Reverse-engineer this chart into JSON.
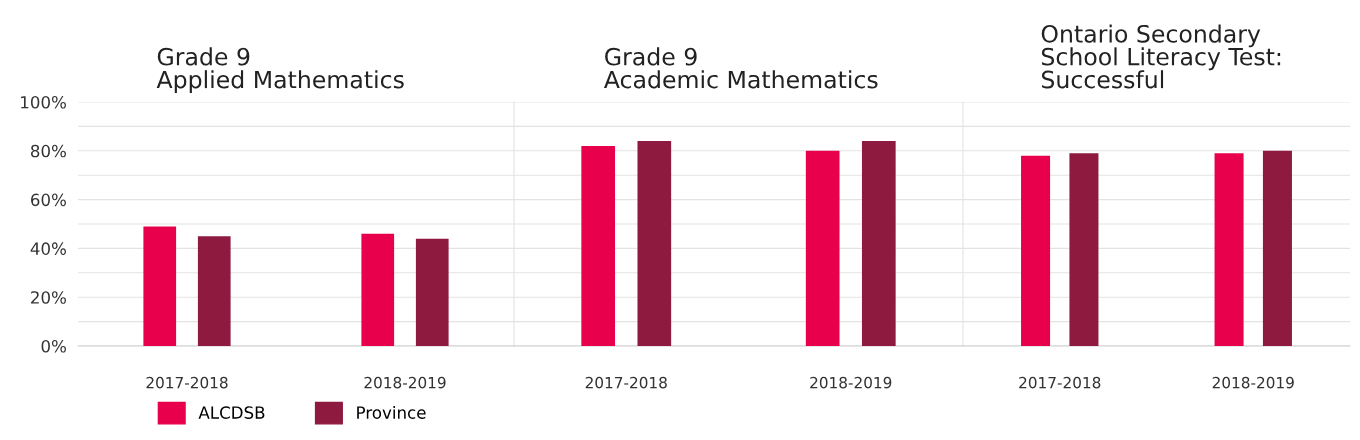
{
  "chart_data": [
    {
      "type": "bar",
      "title": "Grade 9\nApplied Mathematics",
      "categories": [
        "2017-2018",
        "2018-2019"
      ],
      "series": [
        {
          "name": "ALCDSB",
          "color": "#e8004c",
          "values": [
            49,
            46
          ]
        },
        {
          "name": "Province",
          "color": "#8e1a40",
          "values": [
            45,
            44
          ]
        }
      ],
      "ylim": [
        0,
        100
      ],
      "yticks": [
        {
          "value": 0,
          "label": "0%"
        },
        {
          "value": 10,
          "label": null
        },
        {
          "value": 20,
          "label": "20%"
        },
        {
          "value": 30,
          "label": null
        },
        {
          "value": 40,
          "label": "40%"
        },
        {
          "value": 50,
          "label": null
        },
        {
          "value": 60,
          "label": "60%"
        },
        {
          "value": 70,
          "label": null
        },
        {
          "value": 80,
          "label": "80%"
        },
        {
          "value": 90,
          "label": null
        },
        {
          "value": 100,
          "label": "100%"
        }
      ],
      "grid": "y",
      "legend": "bottom"
    },
    {
      "type": "bar",
      "title": "Grade 9\nAcademic Mathematics",
      "categories": [
        "2017-2018",
        "2018-2019"
      ],
      "series": [
        {
          "color": "#e8004c",
          "values": [
            82,
            80
          ]
        },
        {
          "color": "#8e1a40",
          "values": [
            84,
            84
          ]
        }
      ],
      "ylim": [
        0,
        100
      ],
      "yticks": [
        0,
        10,
        20,
        30,
        40,
        50,
        60,
        70,
        80,
        90,
        100
      ],
      "grid": "y",
      "tick_labels": "x"
    },
    {
      "type": "bar",
      "title": "Ontario Secondary\nSchool Literacy Test:\nSuccessful",
      "categories": [
        "2017-2018",
        "2018-2019"
      ],
      "series": [
        {
          "color": "#e8004c",
          "values": [
            78,
            79
          ]
        },
        {
          "color": "#8e1a40",
          "values": [
            79,
            80
          ]
        }
      ],
      "ylim": [
        0,
        100
      ],
      "yticks": [
        0,
        10,
        20,
        30,
        40,
        50,
        60,
        70,
        80,
        90,
        100
      ],
      "grid": "y",
      "tick_labels": "x"
    }
  ]
}
